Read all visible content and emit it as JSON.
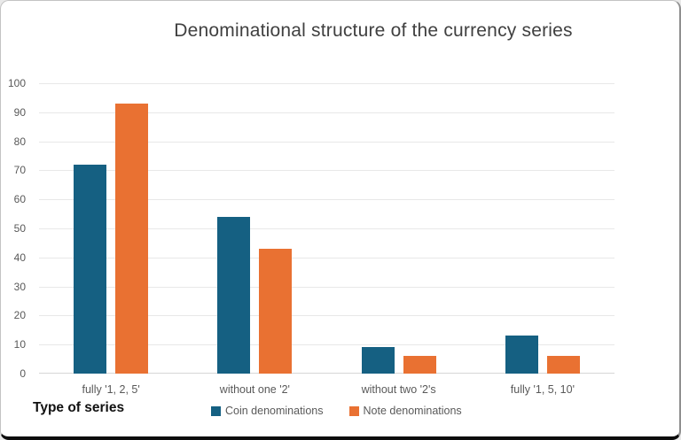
{
  "chart_data": {
    "type": "bar",
    "title": "Denominational structure of the currency series",
    "xlabel": "Type of series",
    "ylabel": "",
    "categories": [
      "fully '1, 2, 5'",
      "without one '2'",
      "without two '2's",
      "fully '1, 5, 10'"
    ],
    "series": [
      {
        "name": "Coin denominations",
        "color": "#156082",
        "values": [
          72,
          54,
          9,
          13
        ]
      },
      {
        "name": "Note denominations",
        "color": "#E97132",
        "values": [
          93,
          43,
          6,
          6
        ]
      }
    ],
    "ylim": [
      0,
      100
    ],
    "ytick_step": 10,
    "grid": true,
    "legend_position": "bottom"
  },
  "colors": {
    "grid": "#e8e8e8",
    "baseline": "#d6d6d6",
    "title_text": "#404040",
    "axis_text": "#595959",
    "axis_title_text": "#111111"
  }
}
